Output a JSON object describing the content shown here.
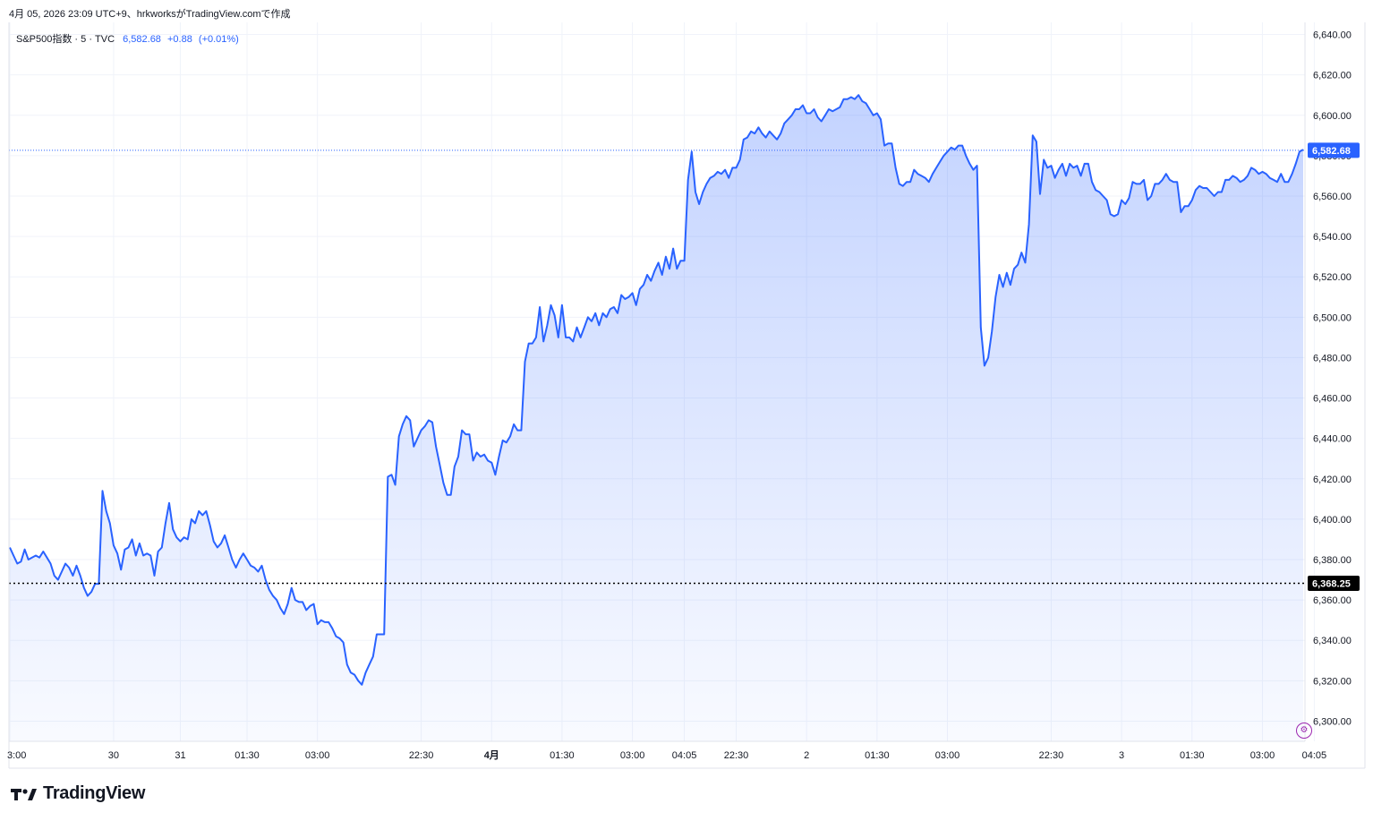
{
  "header": {
    "caption": "4月 05, 2026 23:09 UTC+9、hrkworksがTradingView.comで作成"
  },
  "legend": {
    "symbol": "S&P500指数 · 5 · TVC",
    "last": "6,582.68",
    "change": "+0.88",
    "change_pct": "(+0.01%)"
  },
  "brand": {
    "name": "TradingView",
    "logo_icon": "tradingview-logo-icon"
  },
  "colors": {
    "line": "#2962ff",
    "grid": "#f0f3fa",
    "text": "#131722",
    "price_tag": "#2962ff",
    "ref_tag": "#000000"
  },
  "chart_data": {
    "type": "area",
    "y_axis": {
      "min": 6290,
      "max": 6646,
      "ticks": [
        6300,
        6320,
        6340,
        6360,
        6380,
        6400,
        6420,
        6440,
        6460,
        6480,
        6500,
        6520,
        6540,
        6560,
        6580,
        6600,
        6620,
        6640
      ],
      "tick_labels": [
        "6,300.00",
        "6,320.00",
        "6,340.00",
        "6,360.00",
        "6,380.00",
        "6,400.00",
        "6,420.00",
        "6,440.00",
        "6,460.00",
        "6,480.00",
        "6,500.00",
        "6,520.00",
        "6,540.00",
        "6,560.00",
        "6,580.00",
        "6,600.00",
        "6,620.00",
        "6,640.00"
      ],
      "position": "right"
    },
    "x_axis": {
      "tick_labels": [
        "3:00",
        "30",
        "31",
        "01:30",
        "03:00",
        "22:30",
        "4月",
        "01:30",
        "03:00",
        "04:05",
        "22:30",
        "2",
        "01:30",
        "03:00",
        "22:30",
        "3",
        "01:30",
        "03:00",
        "04:05"
      ],
      "tick_index": [
        0,
        28,
        46,
        64,
        83,
        111,
        130,
        149,
        168,
        182,
        196,
        215,
        234,
        253,
        281,
        300,
        319,
        338,
        352
      ],
      "bold_labels": [
        "4月"
      ]
    },
    "grid": true,
    "last_price": {
      "value": 6582.68,
      "label": "6,582.68"
    },
    "reference_line": {
      "value": 6368.25,
      "label": "6,368.25"
    },
    "values": [
      6386,
      6382,
      6378,
      6379,
      6385,
      6380,
      6381,
      6382,
      6381,
      6384,
      6381,
      6378,
      6372,
      6370,
      6374,
      6378,
      6376,
      6372,
      6377,
      6372,
      6366,
      6362,
      6364,
      6368,
      6368,
      6414,
      6404,
      6398,
      6387,
      6383,
      6375,
      6385,
      6386,
      6390,
      6382,
      6388,
      6382,
      6383,
      6382,
      6372,
      6384,
      6386,
      6398,
      6408,
      6395,
      6391,
      6389,
      6391,
      6390,
      6400,
      6398,
      6404,
      6402,
      6404,
      6397,
      6389,
      6386,
      6388,
      6392,
      6386,
      6380,
      6376,
      6380,
      6383,
      6380,
      6377,
      6376,
      6374,
      6377,
      6370,
      6365,
      6362,
      6360,
      6356,
      6353,
      6358,
      6366,
      6360,
      6359,
      6359,
      6355,
      6357,
      6358,
      6348,
      6350,
      6349,
      6349,
      6346,
      6342,
      6341,
      6339,
      6328,
      6324,
      6323,
      6320,
      6318,
      6324,
      6328,
      6332,
      6343,
      6343,
      6343,
      6421,
      6422,
      6417,
      6441,
      6447,
      6451,
      6449,
      6436,
      6440,
      6444,
      6446,
      6449,
      6448,
      6436,
      6427,
      6418,
      6412,
      6412,
      6426,
      6431,
      6444,
      6442,
      6442,
      6429,
      6433,
      6431,
      6432,
      6429,
      6428,
      6422,
      6431,
      6439,
      6438,
      6441,
      6447,
      6444,
      6444,
      6478,
      6487,
      6487,
      6490,
      6505,
      6488,
      6496,
      6506,
      6501,
      6490,
      6506,
      6490,
      6490,
      6488,
      6495,
      6490,
      6495,
      6500,
      6498,
      6502,
      6496,
      6502,
      6500,
      6504,
      6505,
      6502,
      6511,
      6509,
      6510,
      6512,
      6506,
      6514,
      6516,
      6521,
      6518,
      6523,
      6527,
      6521,
      6530,
      6524,
      6534,
      6524,
      6528,
      6528,
      6568,
      6582,
      6562,
      6556,
      6562,
      6566,
      6569,
      6570,
      6572,
      6571,
      6573,
      6569,
      6574,
      6574,
      6578,
      6588,
      6589,
      6592,
      6591,
      6594,
      6591,
      6589,
      6592,
      6590,
      6588,
      6591,
      6596,
      6598,
      6600,
      6603,
      6603,
      6605,
      6601,
      6601,
      6603,
      6599,
      6597,
      6600,
      6603,
      6602,
      6603,
      6604,
      6608,
      6608,
      6609,
      6608,
      6610,
      6607,
      6606,
      6603,
      6600,
      6601,
      6598,
      6585,
      6586,
      6586,
      6574,
      6566,
      6565,
      6567,
      6567,
      6573,
      6571,
      6570,
      6569,
      6567,
      6571,
      6574,
      6577,
      6580,
      6582,
      6584,
      6583,
      6585,
      6585,
      6580,
      6576,
      6573,
      6575,
      6495,
      6476,
      6480,
      6493,
      6510,
      6521,
      6515,
      6522,
      6516,
      6524,
      6526,
      6532,
      6527,
      6546,
      6590,
      6587,
      6561,
      6578,
      6574,
      6575,
      6569,
      6573,
      6576,
      6570,
      6576,
      6574,
      6575,
      6570,
      6576,
      6576,
      6567,
      6563,
      6562,
      6560,
      6558,
      6551,
      6550,
      6551,
      6558,
      6556,
      6559,
      6567,
      6566,
      6566,
      6568,
      6558,
      6560,
      6566,
      6566,
      6568,
      6571,
      6568,
      6567,
      6567,
      6552,
      6555,
      6555,
      6558,
      6563,
      6565,
      6564,
      6564,
      6562,
      6560,
      6562,
      6562,
      6568,
      6568,
      6570,
      6569,
      6567,
      6568,
      6570,
      6574,
      6573,
      6571,
      6572,
      6571,
      6569,
      6568,
      6567,
      6571,
      6567,
      6567,
      6571,
      6576,
      6582,
      6583
    ]
  }
}
